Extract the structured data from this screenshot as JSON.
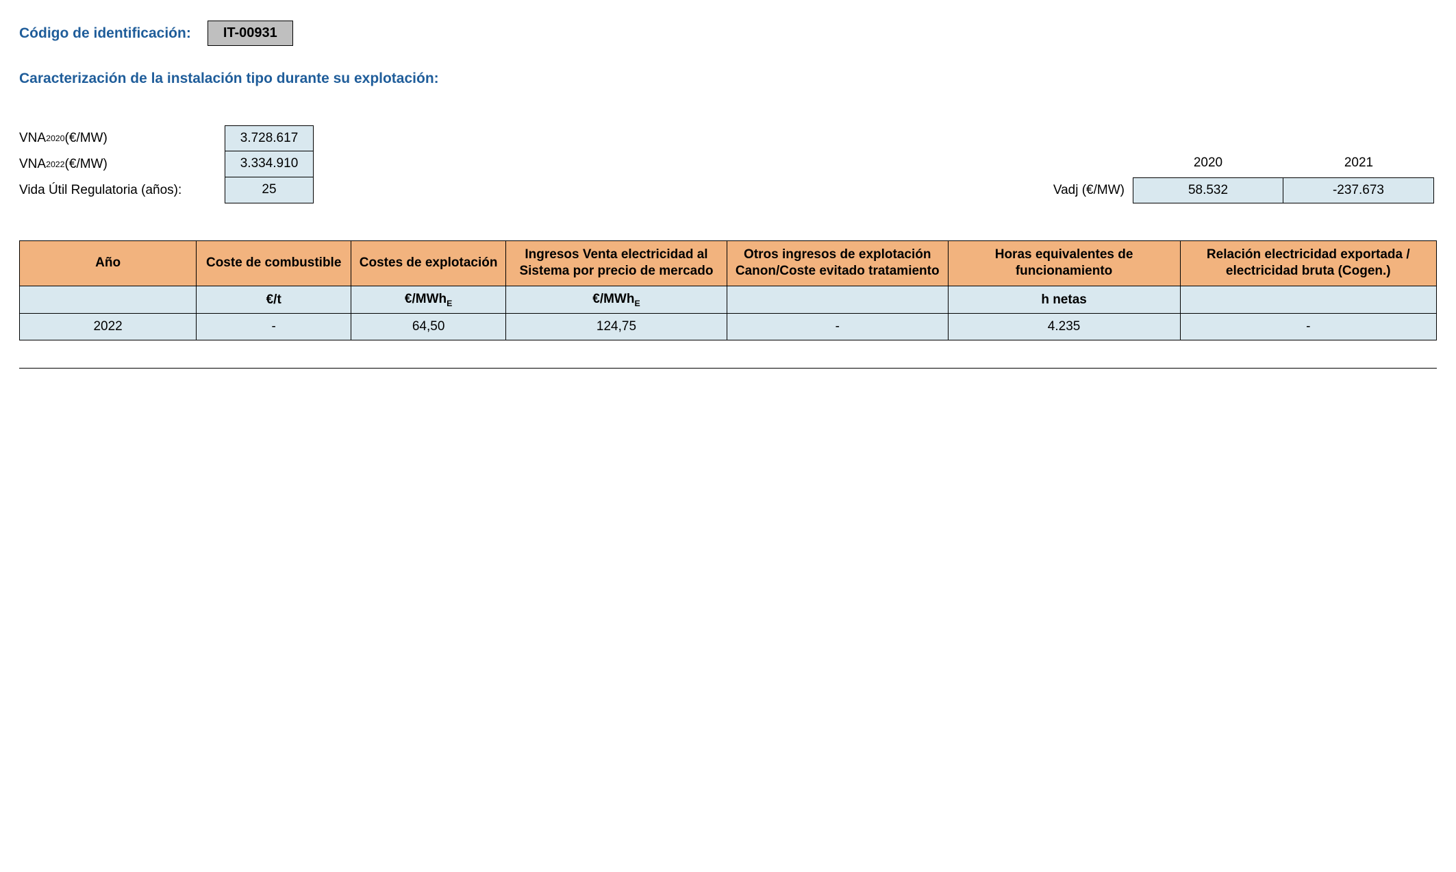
{
  "header": {
    "label": "Código de identificación:",
    "code": "IT-00931"
  },
  "section_title": "Caracterización de la instalación tipo durante su explotación:",
  "vna": {
    "rows": [
      {
        "label_html": "VNA<sub>2020</sub> (€/MW)",
        "value": "3.728.617"
      },
      {
        "label_html": "VNA<sub>2022</sub> (€/MW)",
        "value": "3.334.910"
      },
      {
        "label_html": "Vida Útil Regulatoria (años):",
        "value": "25"
      }
    ]
  },
  "vadj": {
    "label": "Vadj (€/MW)",
    "years": [
      "2020",
      "2021"
    ],
    "values": [
      "58.532",
      "-237.673"
    ]
  },
  "table": {
    "columns": [
      "Año",
      "Coste de combustible",
      "Costes de explotación",
      "Ingresos Venta electricidad al Sistema por precio de mercado",
      "Otros ingresos de explotación Canon/Coste evitado tratamiento",
      "Horas equivalentes de funcionamiento",
      "Relación electricidad exportada / electricidad bruta (Cogen.)"
    ],
    "units_html": [
      "",
      "€/t",
      "€/MWh<sub>E</sub>",
      "€/MWh<sub>E</sub>",
      "",
      "h netas",
      ""
    ],
    "rows": [
      [
        "2022",
        "-",
        "64,50",
        "124,75",
        "-",
        "4.235",
        "-"
      ]
    ],
    "header_bg": "#f2b37e",
    "cell_bg": "#d9e8ef"
  }
}
